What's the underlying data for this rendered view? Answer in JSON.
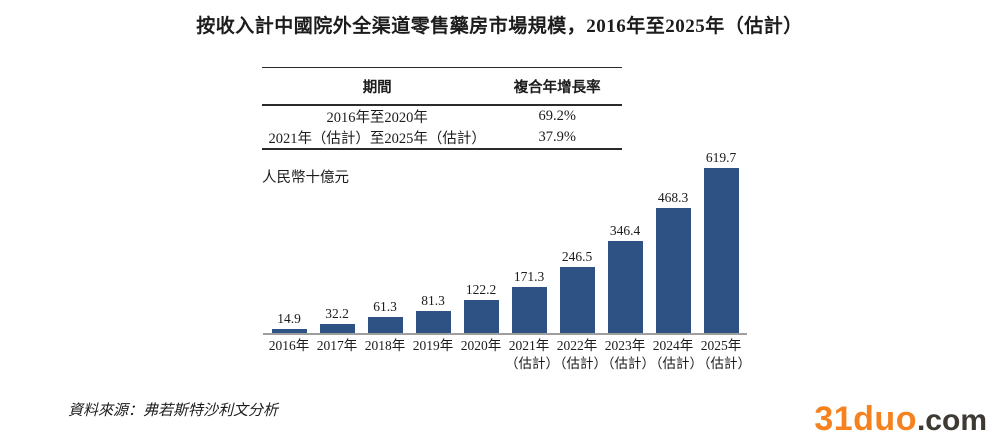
{
  "title": "按收入計中國院外全渠道零售藥房市場規模，2016年至2025年（估計）",
  "cagr_table": {
    "headers": [
      "期間",
      "複合年增長率"
    ],
    "rows": [
      {
        "period": "2016年至2020年",
        "cagr": "69.2%"
      },
      {
        "period": "2021年（估計）至2025年（估計）",
        "cagr": "37.9%"
      }
    ]
  },
  "chart_data": {
    "type": "bar",
    "title": "按收入計中國院外全渠道零售藥房市場規模，2016年至2025年（估計）",
    "unit": "人民幣十億元",
    "categories": [
      "2016年",
      "2017年",
      "2018年",
      "2019年",
      "2020年",
      "2021年",
      "2022年",
      "2023年",
      "2024年",
      "2025年"
    ],
    "estimate_suffix": "（估計）",
    "estimate_from_index": 5,
    "values": [
      14.9,
      32.2,
      61.3,
      81.3,
      122.2,
      171.3,
      246.5,
      346.4,
      468.3,
      619.7
    ],
    "value_labels_shown": true,
    "bar_color": "#2E5284",
    "axis_color": "#9E9E9E",
    "ylim": [
      0,
      650
    ],
    "grid": false,
    "legend": null,
    "xlabel": "",
    "ylabel": "人民幣十億元"
  },
  "source": "資料來源：弗若斯特沙利文分析",
  "watermark": {
    "brand": "31duo",
    "suffix": ".com",
    "brand_color": "#F5821E",
    "suffix_color": "#3E3A33"
  }
}
